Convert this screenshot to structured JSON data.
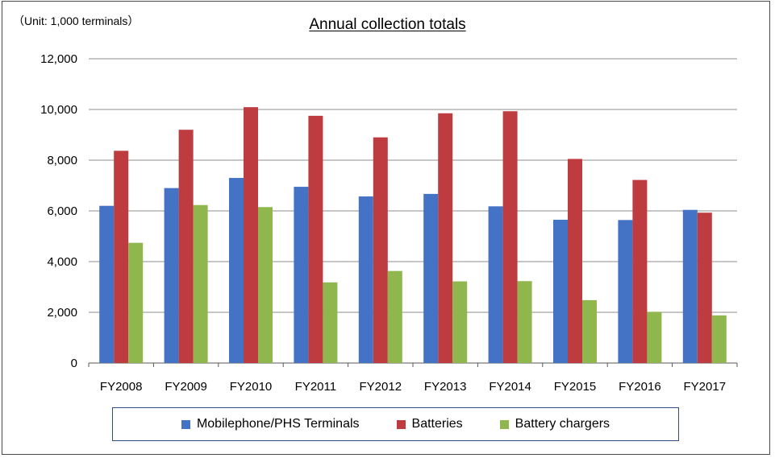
{
  "unit_note": "（Unit: 1,000 terminals）",
  "colors": {
    "Mobilephone/PHS Terminals": "#4472c4",
    "Batteries": "#be3b3f",
    "Battery chargers": "#8fb74d",
    "grid": "#8c8c8c"
  },
  "chart_data": {
    "type": "bar",
    "title": "Annual collection totals",
    "xlabel": "",
    "ylabel": "",
    "ylim": [
      0,
      12000
    ],
    "yticks": [
      0,
      2000,
      4000,
      6000,
      8000,
      10000,
      12000
    ],
    "ytick_labels": [
      "0",
      "2,000",
      "4,000",
      "6,000",
      "8,000",
      "10,000",
      "12,000"
    ],
    "grid": true,
    "legend_position": "bottom",
    "categories": [
      "FY2008",
      "FY2009",
      "FY2010",
      "FY2011",
      "FY2012",
      "FY2013",
      "FY2014",
      "FY2015",
      "FY2016",
      "FY2017"
    ],
    "series": [
      {
        "name": "Mobilephone/PHS Terminals",
        "values": [
          6200,
          6900,
          7300,
          6950,
          6570,
          6670,
          6180,
          5650,
          5640,
          6040
        ]
      },
      {
        "name": "Batteries",
        "values": [
          8370,
          9200,
          10090,
          9750,
          8900,
          9850,
          9930,
          8050,
          7220,
          5930
        ]
      },
      {
        "name": "Battery chargers",
        "values": [
          4740,
          6230,
          6150,
          3180,
          3630,
          3220,
          3230,
          2480,
          2020,
          1880
        ]
      }
    ]
  }
}
